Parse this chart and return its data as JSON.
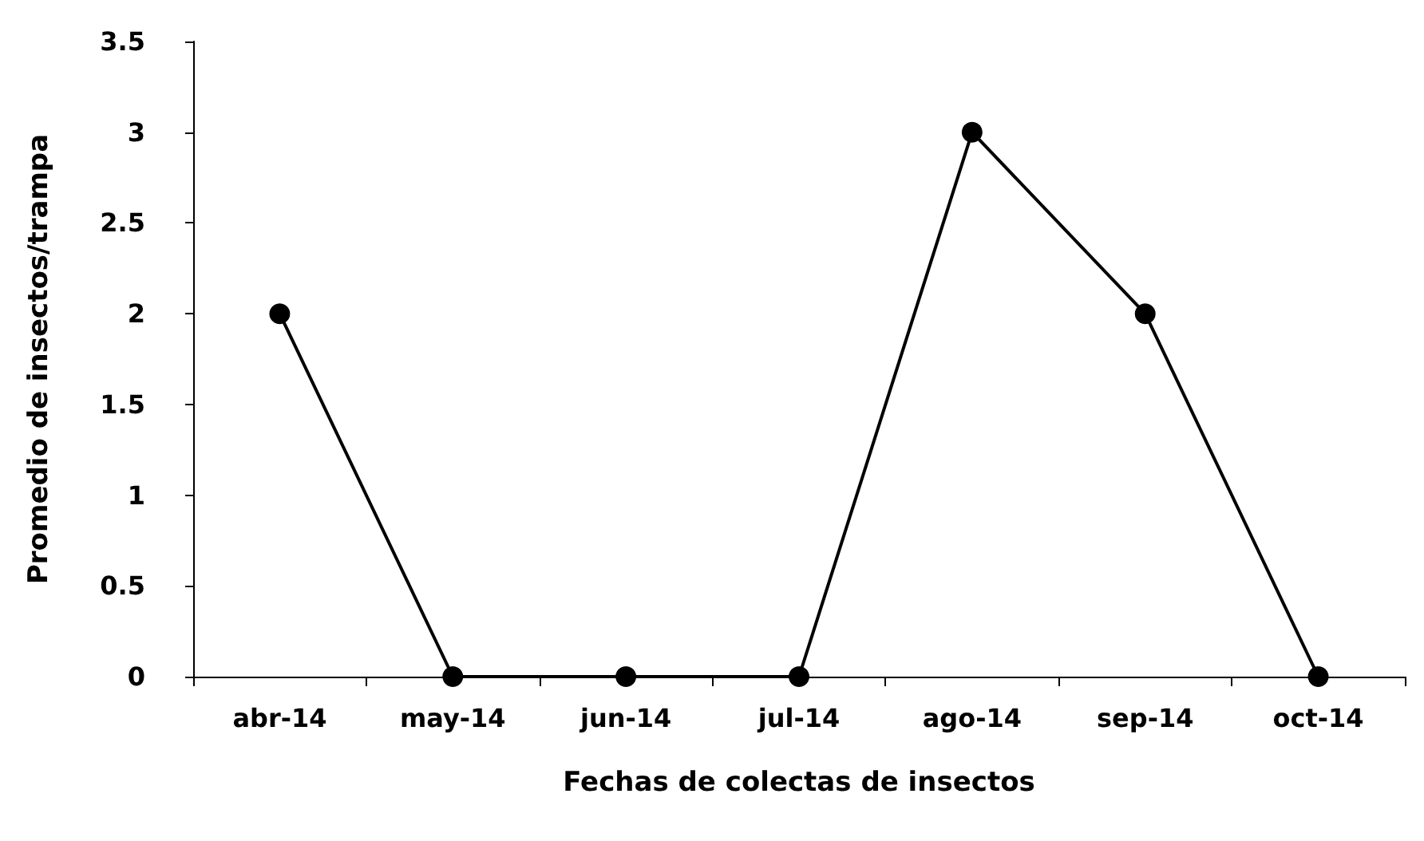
{
  "chart_data": {
    "type": "line",
    "xlabel": "Fechas de colectas de insectos",
    "ylabel": "Promedio de insectos/trampa",
    "categories": [
      "abr-14",
      "may-14",
      "jun-14",
      "jul-14",
      "ago-14",
      "sep-14",
      "oct-14"
    ],
    "values": [
      2,
      0,
      0,
      0,
      3,
      2,
      0
    ],
    "color": "#000000",
    "ylim": [
      0,
      3.5
    ],
    "yticks": [
      0,
      0.5,
      1,
      1.5,
      2,
      2.5,
      3,
      3.5
    ],
    "grid": false,
    "marker": "circle",
    "line_style": "solid"
  }
}
